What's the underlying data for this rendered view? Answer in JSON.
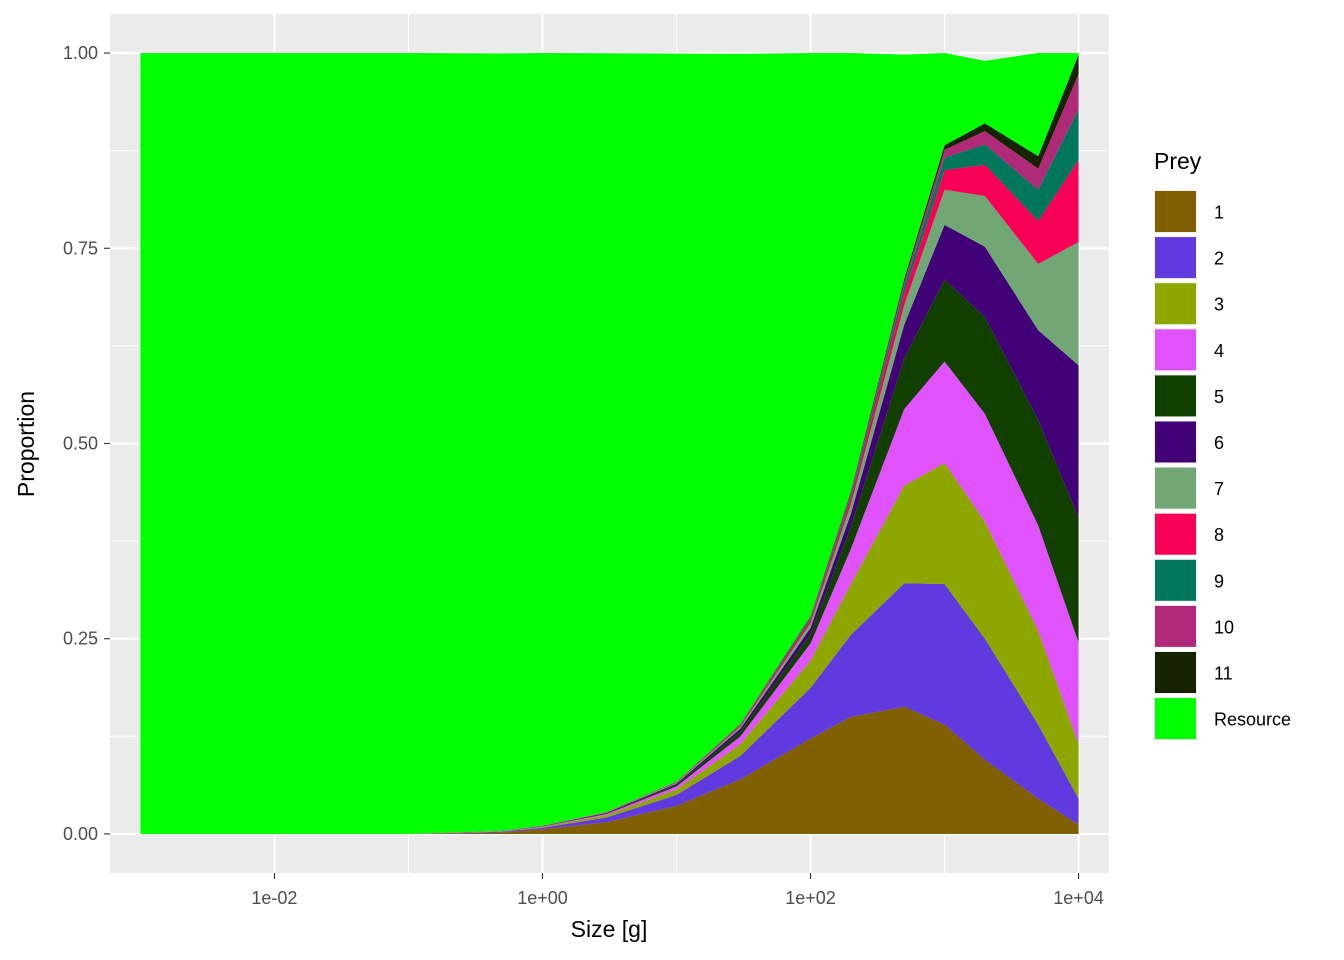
{
  "chart_data": {
    "type": "area",
    "stacked": true,
    "xlabel": "Size [g]",
    "ylabel": "Proportion",
    "x_scale": "log10",
    "xlim": [
      0.001,
      10000
    ],
    "ylim": [
      0,
      1
    ],
    "x_ticks": [
      {
        "value": 0.01,
        "label": "1e-02"
      },
      {
        "value": 1,
        "label": "1e+00"
      },
      {
        "value": 100,
        "label": "1e+02"
      },
      {
        "value": 10000,
        "label": "1e+04"
      }
    ],
    "y_ticks": [
      {
        "value": 0,
        "label": "0.00"
      },
      {
        "value": 0.25,
        "label": "0.25"
      },
      {
        "value": 0.5,
        "label": "0.50"
      },
      {
        "value": 0.75,
        "label": "0.75"
      },
      {
        "value": 1,
        "label": "1.00"
      }
    ],
    "grid": true,
    "legend_title": "Prey",
    "legend_position": "right",
    "x": [
      0.001,
      0.01,
      0.1,
      0.5,
      1,
      3,
      10,
      30,
      100,
      200,
      500,
      1000,
      2000,
      5000,
      10000
    ],
    "series": [
      {
        "name": "1",
        "color": "#7f5f00",
        "values": [
          0,
          0,
          0,
          0.002,
          0.006,
          0.015,
          0.036,
          0.07,
          0.122,
          0.15,
          0.163,
          0.14,
          0.095,
          0.045,
          0.012
        ]
      },
      {
        "name": "2",
        "color": "#613adf",
        "values": [
          0,
          0,
          0,
          0.001,
          0.002,
          0.006,
          0.014,
          0.03,
          0.065,
          0.105,
          0.158,
          0.18,
          0.155,
          0.095,
          0.033
        ]
      },
      {
        "name": "3",
        "color": "#8ea600",
        "values": [
          0,
          0,
          0,
          0.0005,
          0.001,
          0.003,
          0.007,
          0.015,
          0.035,
          0.065,
          0.125,
          0.155,
          0.15,
          0.12,
          0.07
        ]
      },
      {
        "name": "4",
        "color": "#e052fc",
        "values": [
          0,
          0,
          0,
          0.0003,
          0.0006,
          0.0015,
          0.004,
          0.01,
          0.022,
          0.045,
          0.098,
          0.13,
          0.138,
          0.135,
          0.13
        ]
      },
      {
        "name": "5",
        "color": "#113f00",
        "values": [
          0,
          0,
          0,
          0.0002,
          0.0004,
          0.001,
          0.002,
          0.006,
          0.012,
          0.028,
          0.065,
          0.105,
          0.124,
          0.135,
          0.16
        ]
      },
      {
        "name": "6",
        "color": "#410277",
        "values": [
          0,
          0,
          0,
          0.0001,
          0.0003,
          0.0007,
          0.0015,
          0.004,
          0.008,
          0.017,
          0.043,
          0.07,
          0.09,
          0.115,
          0.195
        ]
      },
      {
        "name": "7",
        "color": "#71a774",
        "values": [
          0,
          0,
          0,
          0,
          0.0002,
          0.0004,
          0.001,
          0.0025,
          0.006,
          0.012,
          0.025,
          0.045,
          0.065,
          0.085,
          0.158
        ]
      },
      {
        "name": "8",
        "color": "#f70056",
        "values": [
          0,
          0,
          0,
          0,
          0.0001,
          0.0003,
          0.0007,
          0.0015,
          0.004,
          0.007,
          0.015,
          0.025,
          0.04,
          0.055,
          0.105
        ]
      },
      {
        "name": "9",
        "color": "#00765a",
        "values": [
          0,
          0,
          0,
          0,
          0.0001,
          0.0002,
          0.0005,
          0.001,
          0.0025,
          0.0045,
          0.009,
          0.016,
          0.026,
          0.04,
          0.065
        ]
      },
      {
        "name": "10",
        "color": "#b12a79",
        "values": [
          0,
          0,
          0,
          0,
          0,
          0.0001,
          0.0003,
          0.0007,
          0.0015,
          0.003,
          0.006,
          0.01,
          0.017,
          0.027,
          0.045
        ]
      },
      {
        "name": "11",
        "color": "#172300",
        "values": [
          0,
          0,
          0,
          0,
          0,
          0.0001,
          0.0002,
          0.0005,
          0.001,
          0.002,
          0.0035,
          0.006,
          0.01,
          0.016,
          0.025
        ]
      },
      {
        "name": "Resource",
        "color": "#00ff00",
        "values": [
          1,
          1,
          1,
          0.9955,
          0.9897,
          0.9715,
          0.932,
          0.8578,
          0.7225,
          0.5615,
          0.2875,
          0.118,
          0.08,
          0.132,
          0.002
        ]
      }
    ]
  }
}
